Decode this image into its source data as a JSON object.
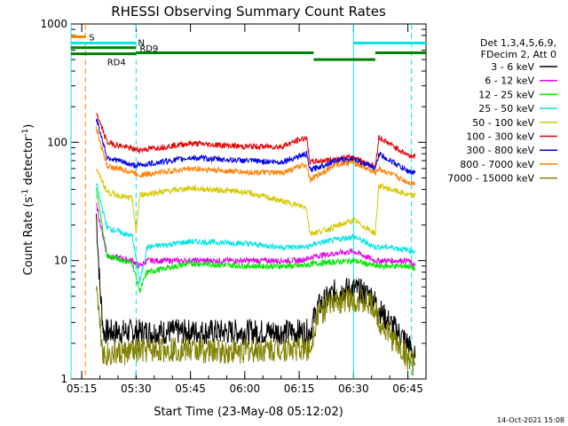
{
  "chart_data": {
    "type": "line",
    "title": "RHESSI Observing Summary Count Rates",
    "xlabel": "Start Time (23-May-08 05:12:02)",
    "ylabel_parts": {
      "pre": "Count Rate (s",
      "sup1": "-1",
      "mid": " detector",
      "sup2": "-1",
      "post": ")"
    },
    "y_scale": "log",
    "ylim": [
      1,
      1000
    ],
    "xlim": [
      "05:12:02",
      "06:50:00"
    ],
    "x_ticks": [
      "05:15",
      "05:30",
      "05:45",
      "06:00",
      "06:15",
      "06:30",
      "06:45"
    ],
    "y_ticks": [
      "1",
      "10",
      "100",
      "1000"
    ],
    "legend_header": [
      "Det 1,3,4,5,6,9,",
      "FDecim 2, Att 0"
    ],
    "legend_position": "right",
    "series": [
      {
        "name": "3 - 6 keV",
        "color": "#000000",
        "points": [
          [
            "05:19",
            25
          ],
          [
            "05:20",
            6
          ],
          [
            "05:21",
            2.5
          ],
          [
            "05:30",
            2.5
          ],
          [
            "05:40",
            2.5
          ],
          [
            "05:55",
            2.5
          ],
          [
            "06:10",
            2.5
          ],
          [
            "06:18",
            2.5
          ],
          [
            "06:20",
            4
          ],
          [
            "06:25",
            5.5
          ],
          [
            "06:30",
            5.8
          ],
          [
            "06:35",
            5
          ],
          [
            "06:38",
            3.5
          ],
          [
            "06:45",
            2
          ],
          [
            "06:47",
            1.5
          ]
        ]
      },
      {
        "name": "6 - 12 keV",
        "color": "#e600e6",
        "points": [
          [
            "05:19",
            30
          ],
          [
            "05:22",
            11
          ],
          [
            "05:29",
            10
          ],
          [
            "05:31",
            9
          ],
          [
            "05:33",
            10
          ],
          [
            "05:45",
            10
          ],
          [
            "06:00",
            10
          ],
          [
            "06:15",
            10
          ],
          [
            "06:20",
            11
          ],
          [
            "06:30",
            12
          ],
          [
            "06:36",
            10
          ],
          [
            "06:45",
            10
          ],
          [
            "06:47",
            9
          ]
        ]
      },
      {
        "name": "12 - 25 keV",
        "color": "#00e600",
        "points": [
          [
            "05:19",
            40
          ],
          [
            "05:22",
            11
          ],
          [
            "05:29",
            9.5
          ],
          [
            "05:31",
            5.5
          ],
          [
            "05:33",
            8
          ],
          [
            "05:45",
            9.5
          ],
          [
            "06:00",
            9
          ],
          [
            "06:15",
            9
          ],
          [
            "06:20",
            9.5
          ],
          [
            "06:30",
            10
          ],
          [
            "06:36",
            9
          ],
          [
            "06:45",
            9
          ],
          [
            "06:47",
            8.5
          ]
        ]
      },
      {
        "name": "25 - 50 keV",
        "color": "#00e6e6",
        "points": [
          [
            "05:19",
            45
          ],
          [
            "05:22",
            19
          ],
          [
            "05:29",
            16
          ],
          [
            "05:31",
            6.5
          ],
          [
            "05:33",
            13
          ],
          [
            "05:45",
            14.5
          ],
          [
            "06:00",
            14
          ],
          [
            "06:10",
            13
          ],
          [
            "06:17",
            13
          ],
          [
            "06:20",
            14
          ],
          [
            "06:30",
            16
          ],
          [
            "06:36",
            13
          ],
          [
            "06:40",
            13
          ],
          [
            "06:47",
            12
          ]
        ]
      },
      {
        "name": "50 - 100 keV",
        "color": "#d6c800",
        "points": [
          [
            "05:19",
            60
          ],
          [
            "05:22",
            38
          ],
          [
            "05:29",
            33
          ],
          [
            "05:30",
            17
          ],
          [
            "05:31",
            36
          ],
          [
            "05:45",
            41
          ],
          [
            "06:00",
            38
          ],
          [
            "06:10",
            32
          ],
          [
            "06:17",
            28
          ],
          [
            "06:18",
            17
          ],
          [
            "06:22",
            18
          ],
          [
            "06:30",
            22
          ],
          [
            "06:36",
            17
          ],
          [
            "06:37",
            43
          ],
          [
            "06:45",
            36
          ],
          [
            "06:47",
            35
          ]
        ]
      },
      {
        "name": "100 - 300 keV",
        "color": "#e60000",
        "points": [
          [
            "05:19",
            180
          ],
          [
            "05:22",
            100
          ],
          [
            "05:29",
            88
          ],
          [
            "05:31",
            86
          ],
          [
            "05:45",
            98
          ],
          [
            "06:00",
            92
          ],
          [
            "06:10",
            92
          ],
          [
            "06:17",
            110
          ],
          [
            "06:18",
            68
          ],
          [
            "06:25",
            72
          ],
          [
            "06:30",
            75
          ],
          [
            "06:36",
            62
          ],
          [
            "06:37",
            110
          ],
          [
            "06:45",
            78
          ],
          [
            "06:47",
            76
          ]
        ]
      },
      {
        "name": "300 - 800 keV",
        "color": "#0000e6",
        "points": [
          [
            "05:19",
            160
          ],
          [
            "05:22",
            75
          ],
          [
            "05:29",
            64
          ],
          [
            "05:31",
            64
          ],
          [
            "05:45",
            74
          ],
          [
            "06:00",
            70
          ],
          [
            "06:10",
            68
          ],
          [
            "06:17",
            80
          ],
          [
            "06:18",
            58
          ],
          [
            "06:25",
            70
          ],
          [
            "06:30",
            72
          ],
          [
            "06:36",
            60
          ],
          [
            "06:37",
            80
          ],
          [
            "06:45",
            57
          ],
          [
            "06:47",
            55
          ]
        ]
      },
      {
        "name": "800 - 7000 keV",
        "color": "#ff8000",
        "points": [
          [
            "05:19",
            130
          ],
          [
            "05:22",
            63
          ],
          [
            "05:29",
            56
          ],
          [
            "05:31",
            53
          ],
          [
            "05:45",
            60
          ],
          [
            "06:00",
            56
          ],
          [
            "06:10",
            55
          ],
          [
            "06:17",
            65
          ],
          [
            "06:18",
            48
          ],
          [
            "06:25",
            65
          ],
          [
            "06:30",
            68
          ],
          [
            "06:36",
            55
          ],
          [
            "06:37",
            60
          ],
          [
            "06:45",
            46
          ],
          [
            "06:47",
            45
          ]
        ]
      },
      {
        "name": "7000 - 15000 keV",
        "color": "#808000",
        "points": [
          [
            "05:19",
            7
          ],
          [
            "05:20",
            3
          ],
          [
            "05:21",
            1.6
          ],
          [
            "05:30",
            1.7
          ],
          [
            "05:40",
            1.8
          ],
          [
            "05:55",
            1.7
          ],
          [
            "06:10",
            1.8
          ],
          [
            "06:18",
            1.8
          ],
          [
            "06:20",
            3.5
          ],
          [
            "06:25",
            4.5
          ],
          [
            "06:30",
            4.8
          ],
          [
            "06:35",
            4.2
          ],
          [
            "06:38",
            2.8
          ],
          [
            "06:45",
            1.5
          ],
          [
            "06:47",
            1.3
          ]
        ]
      }
    ],
    "flag_lines": [
      {
        "label": "S",
        "color": "#ff8000",
        "x1": "05:12:02",
        "x2": "05:16:00",
        "y": 780
      },
      {
        "label": "N",
        "color": "#00e6e6",
        "x1": "05:12:02",
        "x2": "05:30:00",
        "y": 690
      },
      {
        "label": "",
        "color": "#00e6e6",
        "x1": "06:30:00",
        "x2": "06:50:00",
        "y": 690
      },
      {
        "label": "RD9",
        "color": "#008000",
        "x1": "05:12:02",
        "x2": "05:30:00",
        "y": 630
      },
      {
        "label": "",
        "color": "#008000",
        "x1": "05:30:00",
        "x2": "06:19:00",
        "y": 570
      },
      {
        "label": "",
        "color": "#008000",
        "x1": "06:19:00",
        "x2": "06:36:00",
        "y": 500
      },
      {
        "label": "",
        "color": "#008000",
        "x1": "06:36:00",
        "x2": "06:50:00",
        "y": 570
      },
      {
        "label": "RD4",
        "color": "#008000",
        "x1": "05:12:02",
        "x2": "05:30:00",
        "y": 560
      }
    ],
    "vertical_markers": [
      {
        "x": "05:12:02",
        "color": "#00e6e6",
        "dashed": false
      },
      {
        "x": "05:16:00",
        "color": "#ff8000",
        "dashed": true
      },
      {
        "x": "05:30:00",
        "color": "#00e6e6",
        "dashed": true
      },
      {
        "x": "06:30:00",
        "color": "#00e6e6",
        "dashed": false
      },
      {
        "x": "06:46:00",
        "color": "#00e6e6",
        "dashed": true
      }
    ]
  },
  "footer": {
    "date_stamp": "14-Oct-2021 15:08"
  }
}
